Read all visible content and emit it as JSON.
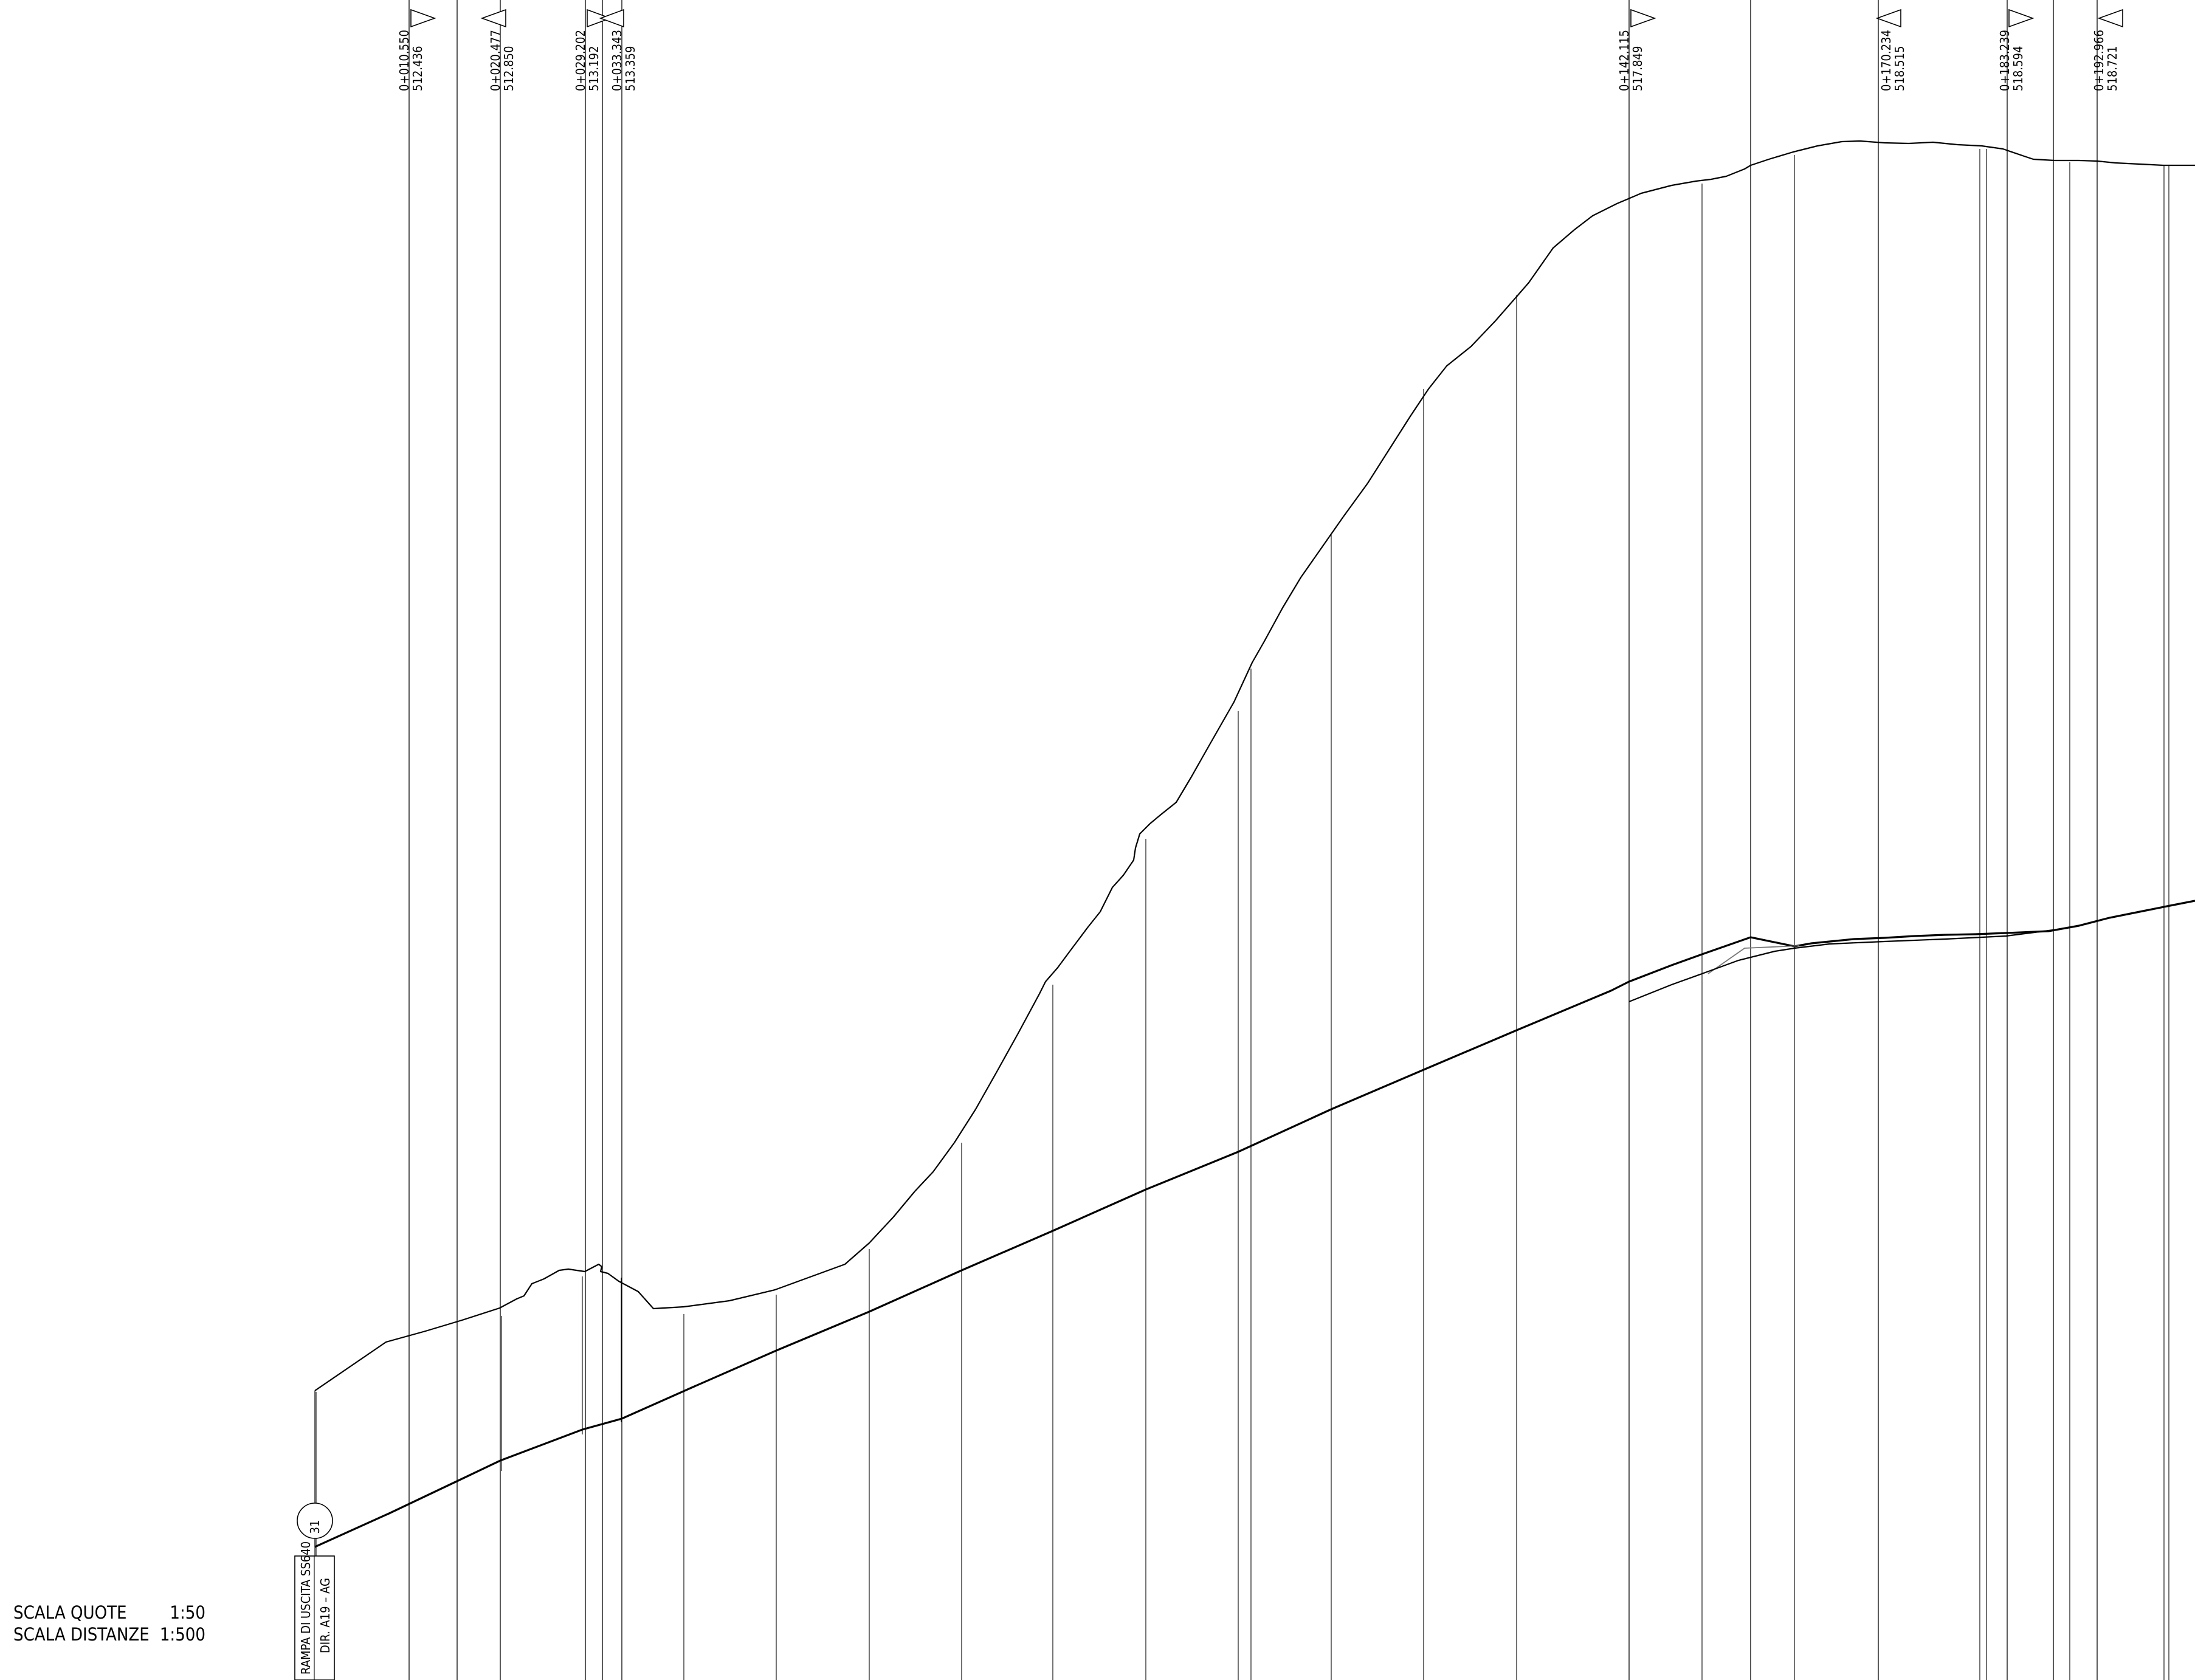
{
  "scale_block": {
    "quote_label": "SCALA  QUOTE",
    "quote_value": "1:50",
    "distance_label": "SCALA  DISTANZE",
    "distance_value": "1:500"
  },
  "title_box": {
    "line1": "RAMPA DI USCITA SS640",
    "line2": "DIR. A19 – AG"
  },
  "marker": {
    "number": "31"
  },
  "vertical_points": [
    {
      "station": "0+010.550",
      "elevation": "512.436",
      "triangle": "right"
    },
    {
      "station": "0+020.477",
      "elevation": "512.850",
      "triangle": "left"
    },
    {
      "station": "0+029.202",
      "elevation": "513.192",
      "triangle": "right"
    },
    {
      "station": "0+033.343",
      "elevation": "513.359",
      "triangle": "left"
    },
    {
      "station": "0+142.115",
      "elevation": "517.849",
      "triangle": "right"
    },
    {
      "station": "0+170.234",
      "elevation": "518.515",
      "triangle": "left"
    },
    {
      "station": "0+183.239",
      "elevation": "518.594",
      "triangle": "right"
    },
    {
      "station": "0+192.966",
      "elevation": "518.721",
      "triangle": "left"
    }
  ]
}
